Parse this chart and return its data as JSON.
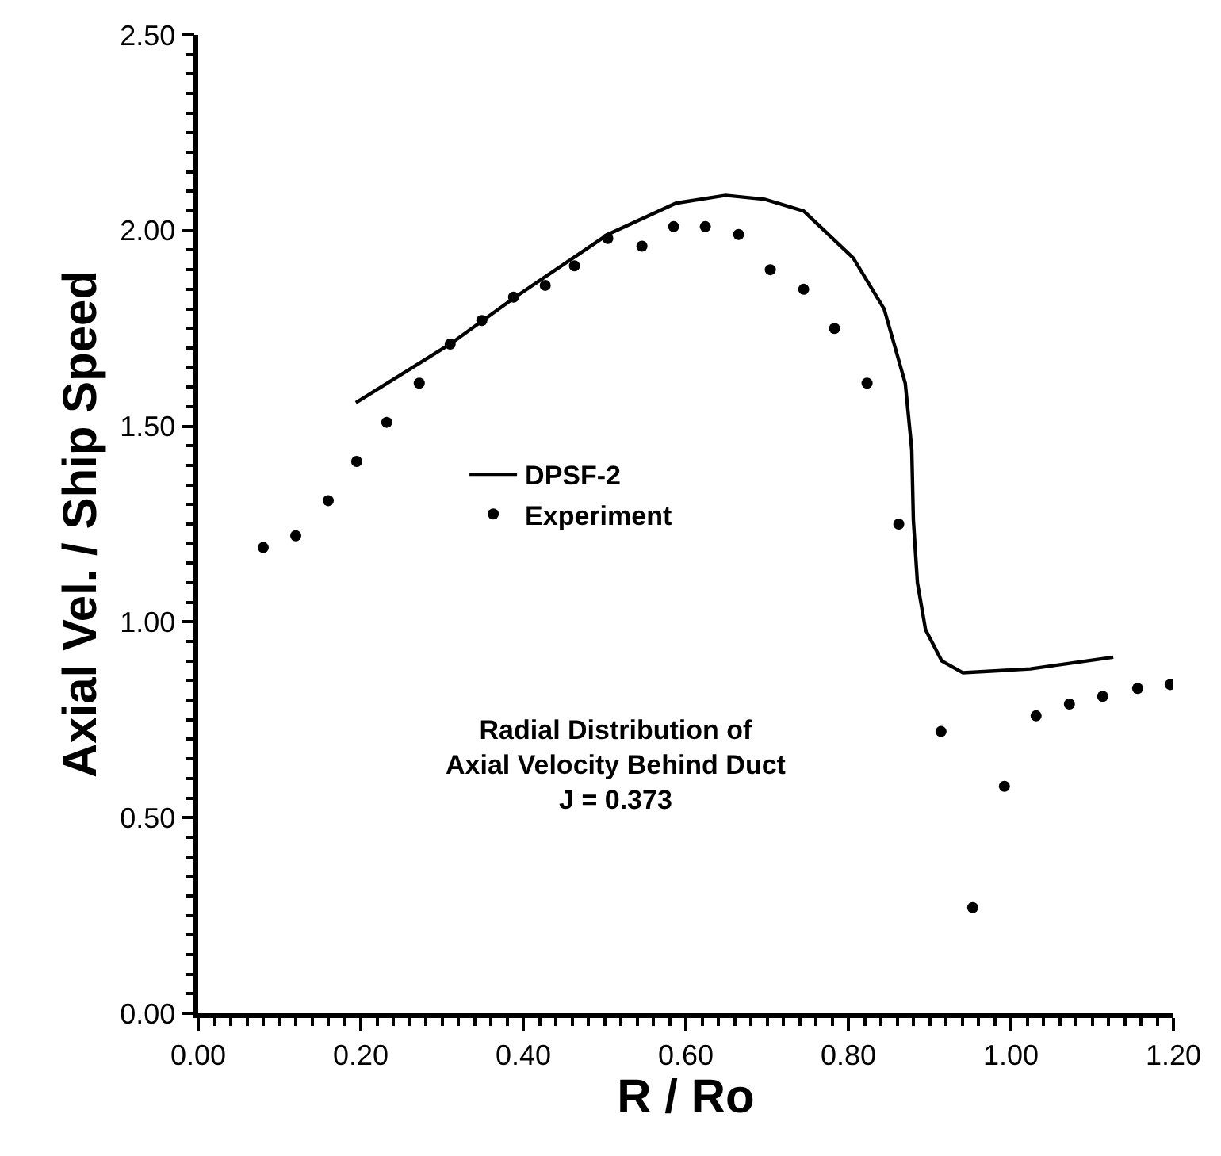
{
  "chart_data": {
    "type": "line",
    "xlabel": "R / Ro",
    "ylabel": "Axial Vel. / Ship Speed",
    "xlim": [
      0,
      1.2
    ],
    "xticks": [
      {
        "value": 0,
        "label": "0.00"
      },
      {
        "value": 0.2,
        "label": "0.20"
      },
      {
        "value": 0.4,
        "label": "0.40"
      },
      {
        "value": 0.6,
        "label": "0.60"
      },
      {
        "value": 0.8,
        "label": "0.80"
      },
      {
        "value": 1,
        "label": "1.00"
      },
      {
        "value": 1.2,
        "label": "1.20"
      }
    ],
    "ylim": [
      0,
      2.5
    ],
    "yticks": [
      {
        "value": 0,
        "label": "0.00"
      },
      {
        "value": 0.5,
        "label": "0.50"
      },
      {
        "value": 1,
        "label": "1.00"
      },
      {
        "value": 1.5,
        "label": "1.50"
      },
      {
        "value": 2,
        "label": "2.00"
      },
      {
        "value": 2.5,
        "label": "2.50"
      }
    ],
    "grid": false,
    "legend": "center",
    "series": [
      {
        "name": "DPSF-2",
        "color": "#000000",
        "marker": "none",
        "line_style": "solid",
        "x": [
          0.194,
          0.31,
          0.39,
          0.504,
          0.588,
          0.649,
          0.697,
          0.745,
          0.806,
          0.844,
          0.87,
          0.878,
          0.88,
          0.885,
          0.895,
          0.915,
          0.941,
          1.024,
          1.126
        ],
        "values": [
          1.56,
          1.71,
          1.83,
          1.99,
          2.07,
          2.09,
          2.08,
          2.05,
          1.93,
          1.8,
          1.61,
          1.44,
          1.26,
          1.1,
          0.98,
          0.9,
          0.87,
          0.88,
          0.91
        ]
      },
      {
        "name": "Experiment",
        "type": "scatter",
        "color": "#000000",
        "marker": "circle",
        "x": [
          0.08,
          0.12,
          0.16,
          0.195,
          0.232,
          0.272,
          0.31,
          0.349,
          0.388,
          0.427,
          0.463,
          0.504,
          0.546,
          0.585,
          0.624,
          0.665,
          0.704,
          0.745,
          0.783,
          0.823,
          0.862,
          0.914,
          0.953,
          0.992,
          1.031,
          1.072,
          1.113,
          1.156,
          1.196
        ],
        "values": [
          1.19,
          1.22,
          1.31,
          1.41,
          1.51,
          1.61,
          1.71,
          1.77,
          1.83,
          1.86,
          1.91,
          1.98,
          1.96,
          2.01,
          2.01,
          1.99,
          1.9,
          1.85,
          1.75,
          1.61,
          1.25,
          0.72,
          0.27,
          0.58,
          0.76,
          0.79,
          0.81,
          0.83,
          0.84
        ]
      }
    ],
    "annotations": [
      "Radial Distribution of\nAxial Velocity Behind Duct\nJ = 0.373"
    ]
  }
}
